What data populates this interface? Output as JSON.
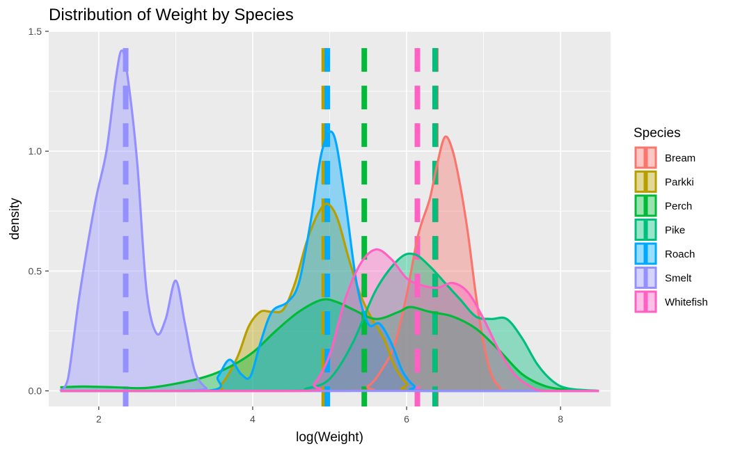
{
  "chart_data": {
    "type": "area",
    "title": "Distribution of Weight by Species",
    "xlabel": "log(Weight)",
    "ylabel": "density",
    "xlim": [
      1.35,
      8.65
    ],
    "ylim": [
      -0.065,
      1.5
    ],
    "x_ticks": [
      2,
      4,
      6,
      8
    ],
    "x_tick_labels": [
      "2",
      "4",
      "6",
      "8"
    ],
    "y_ticks": [
      0.0,
      0.5,
      1.0,
      1.5
    ],
    "y_tick_labels": [
      "0.0",
      "0.5",
      "1.0",
      "1.5"
    ],
    "grid": true,
    "legend": {
      "title": "Species",
      "position": "right",
      "entries": [
        "Bream",
        "Parkki",
        "Perch",
        "Pike",
        "Roach",
        "Smelt",
        "Whitefish"
      ]
    },
    "series": [
      {
        "name": "Bream",
        "color": "#F8766D",
        "mean_log_weight": 6.38,
        "points": [
          [
            1.5,
            0
          ],
          [
            5.2,
            0.0
          ],
          [
            5.5,
            0.02
          ],
          [
            5.7,
            0.1
          ],
          [
            5.85,
            0.2
          ],
          [
            6.0,
            0.4
          ],
          [
            6.15,
            0.65
          ],
          [
            6.3,
            0.8
          ],
          [
            6.4,
            0.95
          ],
          [
            6.5,
            1.06
          ],
          [
            6.6,
            1.0
          ],
          [
            6.7,
            0.85
          ],
          [
            6.8,
            0.65
          ],
          [
            6.9,
            0.4
          ],
          [
            7.0,
            0.2
          ],
          [
            7.1,
            0.07
          ],
          [
            7.2,
            0.02
          ],
          [
            7.35,
            0
          ],
          [
            8.5,
            0
          ]
        ]
      },
      {
        "name": "Parkki",
        "color": "#B79F00",
        "mean_log_weight": 4.93,
        "points": [
          [
            1.5,
            0
          ],
          [
            3.4,
            0
          ],
          [
            3.6,
            0.03
          ],
          [
            3.8,
            0.14
          ],
          [
            3.95,
            0.27
          ],
          [
            4.1,
            0.33
          ],
          [
            4.25,
            0.33
          ],
          [
            4.4,
            0.34
          ],
          [
            4.55,
            0.45
          ],
          [
            4.7,
            0.62
          ],
          [
            4.85,
            0.74
          ],
          [
            4.97,
            0.78
          ],
          [
            5.1,
            0.72
          ],
          [
            5.25,
            0.55
          ],
          [
            5.4,
            0.4
          ],
          [
            5.55,
            0.3
          ],
          [
            5.7,
            0.22
          ],
          [
            5.85,
            0.1
          ],
          [
            6.0,
            0.03
          ],
          [
            6.15,
            0
          ],
          [
            8.5,
            0
          ]
        ]
      },
      {
        "name": "Perch",
        "color": "#00BA38",
        "mean_log_weight": 5.45,
        "points": [
          [
            1.5,
            0.015
          ],
          [
            1.8,
            0.018
          ],
          [
            2.2,
            0.015
          ],
          [
            2.6,
            0.012
          ],
          [
            3.0,
            0.03
          ],
          [
            3.4,
            0.06
          ],
          [
            3.7,
            0.1
          ],
          [
            4.0,
            0.16
          ],
          [
            4.3,
            0.25
          ],
          [
            4.6,
            0.33
          ],
          [
            4.9,
            0.38
          ],
          [
            5.1,
            0.37
          ],
          [
            5.3,
            0.34
          ],
          [
            5.6,
            0.3
          ],
          [
            5.9,
            0.33
          ],
          [
            6.05,
            0.35
          ],
          [
            6.3,
            0.33
          ],
          [
            6.6,
            0.31
          ],
          [
            6.9,
            0.26
          ],
          [
            7.2,
            0.17
          ],
          [
            7.5,
            0.07
          ],
          [
            7.8,
            0.02
          ],
          [
            8.1,
            0.005
          ],
          [
            8.5,
            0
          ]
        ]
      },
      {
        "name": "Pike",
        "color": "#00BF7D",
        "mean_log_weight": 6.37,
        "points": [
          [
            1.5,
            0
          ],
          [
            4.4,
            0
          ],
          [
            4.7,
            0.01
          ],
          [
            5.0,
            0.05
          ],
          [
            5.3,
            0.2
          ],
          [
            5.6,
            0.42
          ],
          [
            5.9,
            0.55
          ],
          [
            6.1,
            0.57
          ],
          [
            6.3,
            0.52
          ],
          [
            6.5,
            0.45
          ],
          [
            6.7,
            0.38
          ],
          [
            6.9,
            0.31
          ],
          [
            7.1,
            0.3
          ],
          [
            7.3,
            0.3
          ],
          [
            7.5,
            0.22
          ],
          [
            7.7,
            0.11
          ],
          [
            7.9,
            0.04
          ],
          [
            8.1,
            0.01
          ],
          [
            8.5,
            0
          ]
        ]
      },
      {
        "name": "Roach",
        "color": "#00A9FF",
        "mean_log_weight": 4.97,
        "points": [
          [
            1.5,
            0
          ],
          [
            3.4,
            0
          ],
          [
            3.55,
            0.06
          ],
          [
            3.7,
            0.13
          ],
          [
            3.85,
            0.07
          ],
          [
            3.97,
            0.06
          ],
          [
            4.1,
            0.2
          ],
          [
            4.25,
            0.33
          ],
          [
            4.45,
            0.37
          ],
          [
            4.6,
            0.45
          ],
          [
            4.75,
            0.7
          ],
          [
            4.9,
            1.0
          ],
          [
            5.05,
            1.07
          ],
          [
            5.2,
            0.8
          ],
          [
            5.35,
            0.45
          ],
          [
            5.5,
            0.28
          ],
          [
            5.65,
            0.28
          ],
          [
            5.8,
            0.2
          ],
          [
            5.95,
            0.08
          ],
          [
            6.1,
            0.02
          ],
          [
            6.25,
            0
          ],
          [
            8.5,
            0
          ]
        ]
      },
      {
        "name": "Smelt",
        "color": "#9590FF",
        "mean_log_weight": 2.35,
        "points": [
          [
            1.5,
            0
          ],
          [
            1.6,
            0.05
          ],
          [
            1.75,
            0.4
          ],
          [
            1.95,
            0.78
          ],
          [
            2.1,
            1.0
          ],
          [
            2.22,
            1.3
          ],
          [
            2.3,
            1.42
          ],
          [
            2.38,
            1.3
          ],
          [
            2.5,
            0.95
          ],
          [
            2.62,
            0.42
          ],
          [
            2.75,
            0.24
          ],
          [
            2.87,
            0.3
          ],
          [
            3.0,
            0.46
          ],
          [
            3.12,
            0.28
          ],
          [
            3.25,
            0.08
          ],
          [
            3.4,
            0.01
          ],
          [
            3.5,
            0
          ],
          [
            8.5,
            0
          ]
        ]
      },
      {
        "name": "Whitefish",
        "color": "#FF61C3",
        "mean_log_weight": 6.14,
        "points": [
          [
            1.5,
            0
          ],
          [
            4.6,
            0
          ],
          [
            4.8,
            0.03
          ],
          [
            5.0,
            0.15
          ],
          [
            5.2,
            0.38
          ],
          [
            5.4,
            0.53
          ],
          [
            5.6,
            0.59
          ],
          [
            5.8,
            0.55
          ],
          [
            6.0,
            0.47
          ],
          [
            6.2,
            0.44
          ],
          [
            6.4,
            0.43
          ],
          [
            6.6,
            0.45
          ],
          [
            6.8,
            0.41
          ],
          [
            7.0,
            0.3
          ],
          [
            7.2,
            0.17
          ],
          [
            7.4,
            0.07
          ],
          [
            7.6,
            0.02
          ],
          [
            7.8,
            0
          ],
          [
            8.5,
            0
          ]
        ]
      }
    ]
  }
}
